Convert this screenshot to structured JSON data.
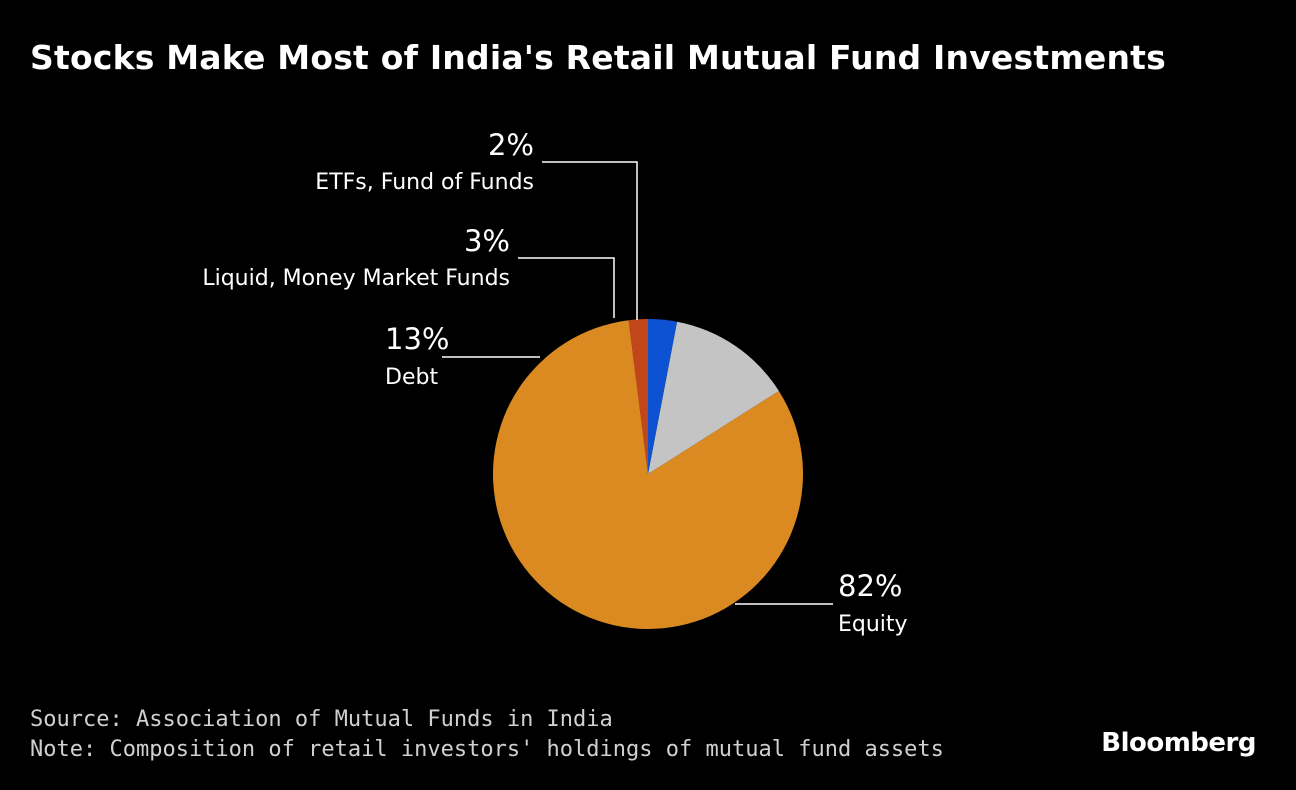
{
  "header": {
    "title": "Stocks Make Most of India's Retail Mutual Fund Investments"
  },
  "chart_data": {
    "type": "pie",
    "title": "Stocks Make Most of India's Retail Mutual Fund Investments",
    "slices": [
      {
        "label": "ETFs, Fund of Funds",
        "value": 2,
        "value_label": "2%",
        "color": "#c2461c"
      },
      {
        "label": "Equity",
        "value": 82,
        "value_label": "82%",
        "color": "#db8a22"
      },
      {
        "label": "Debt",
        "value": 13,
        "value_label": "13%",
        "color": "#c4c4c4"
      },
      {
        "label": "Liquid, Money Market Funds",
        "value": 3,
        "value_label": "3%",
        "color": "#0c52d3"
      }
    ],
    "start": "12 o'clock",
    "direction": "counterclockwise",
    "legend": "none"
  },
  "footer": {
    "source": "Source: Association of Mutual Funds in India",
    "note": "Note: Composition of retail investors' holdings of mutual fund assets"
  },
  "brand": {
    "name": "Bloomberg"
  }
}
